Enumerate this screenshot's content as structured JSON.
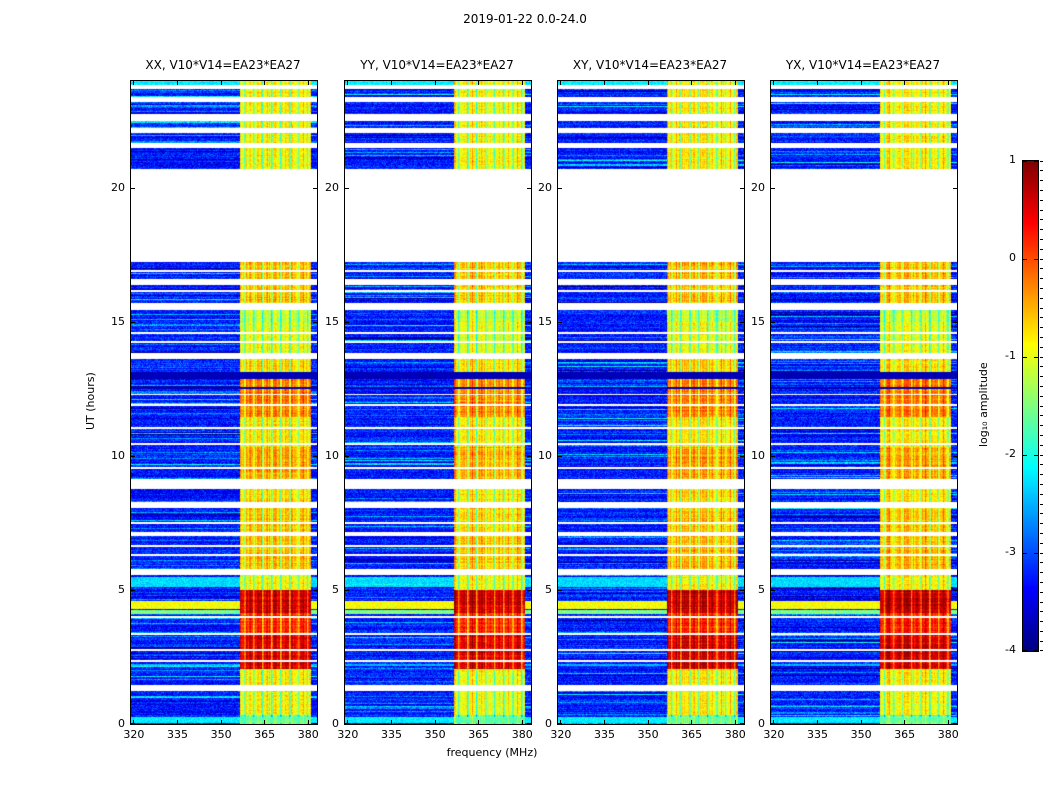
{
  "chart_data": {
    "type": "heatmap",
    "title": "2019-01-22 0.0-24.0",
    "xlabel": "frequency (MHz)",
    "ylabel": "UT (hours)",
    "panels": [
      {
        "title": "XX, V10*V14=EA23*EA27"
      },
      {
        "title": "YY, V10*V14=EA23*EA27"
      },
      {
        "title": "XY, V10*V14=EA23*EA27"
      },
      {
        "title": "YX, V10*V14=EA23*EA27"
      }
    ],
    "x_range": [
      319,
      383
    ],
    "y_range": [
      0,
      24
    ],
    "x_ticks": [
      320,
      335,
      350,
      365,
      380
    ],
    "y_ticks": [
      0,
      5,
      10,
      15,
      20
    ],
    "colorbar": {
      "label": "log₁₀ amplitude",
      "ticks": [
        1,
        0,
        -1,
        -2,
        -3,
        -4
      ],
      "range": [
        -4,
        1
      ],
      "colormap": "jet"
    },
    "features": {
      "rfi_band_mhz": [
        356.5,
        380.8
      ],
      "background_log_amp": -3.25,
      "data_gaps_ut": [
        [
          1.25,
          1.46
        ],
        [
          5.56,
          5.8
        ],
        [
          7.02,
          7.18
        ],
        [
          8.08,
          8.3
        ],
        [
          8.78,
          9.15
        ],
        [
          13.62,
          13.86
        ],
        [
          15.45,
          15.7
        ],
        [
          16.4,
          16.62
        ],
        [
          17.25,
          20.72
        ],
        [
          21.5,
          21.7
        ],
        [
          22.05,
          22.25
        ],
        [
          22.52,
          22.75
        ],
        [
          23.2,
          23.42
        ],
        [
          23.72,
          23.84
        ]
      ],
      "band_profile": [
        [
          0,
          0.35,
          -1.6
        ],
        [
          0.35,
          1.25,
          -0.9
        ],
        [
          1.46,
          2.05,
          -0.85
        ],
        [
          2.05,
          3.35,
          0.55
        ],
        [
          3.35,
          4.15,
          0.2
        ],
        [
          4.15,
          5.0,
          0.65
        ],
        [
          5.0,
          5.56,
          -0.9
        ],
        [
          5.8,
          7.02,
          -0.55
        ],
        [
          7.18,
          8.08,
          -0.6
        ],
        [
          8.3,
          8.78,
          -0.75
        ],
        [
          9.15,
          10.35,
          -0.45
        ],
        [
          10.35,
          11.45,
          -0.8
        ],
        [
          11.45,
          13.0,
          -0.25
        ],
        [
          13.0,
          13.62,
          -0.7
        ],
        [
          13.86,
          15.0,
          -1.0
        ],
        [
          15.0,
          15.45,
          -1.15
        ],
        [
          15.7,
          16.4,
          -0.6
        ],
        [
          16.62,
          17.25,
          -0.55
        ],
        [
          20.72,
          24.01,
          -0.85
        ]
      ],
      "full_width_stripes": [
        [
          0.15,
          0.12,
          -2.2
        ],
        [
          2.2,
          0.05,
          -2.5
        ],
        [
          4.18,
          0.06,
          -1.5
        ],
        [
          4.45,
          0.14,
          -0.9
        ],
        [
          5.3,
          0.2,
          -2.3
        ],
        [
          23.93,
          0.09,
          -2.2
        ]
      ],
      "dark_stripes": [
        [
          12.5,
          12.58
        ],
        [
          12.88,
          13.12
        ]
      ],
      "thin_white_lines": [
        2.35,
        2.75,
        3.35,
        4.0,
        6.3,
        6.65,
        7.5,
        9.55,
        10.45,
        11.05,
        11.9,
        12.3,
        14.25,
        14.6,
        16.15,
        16.9
      ]
    }
  }
}
